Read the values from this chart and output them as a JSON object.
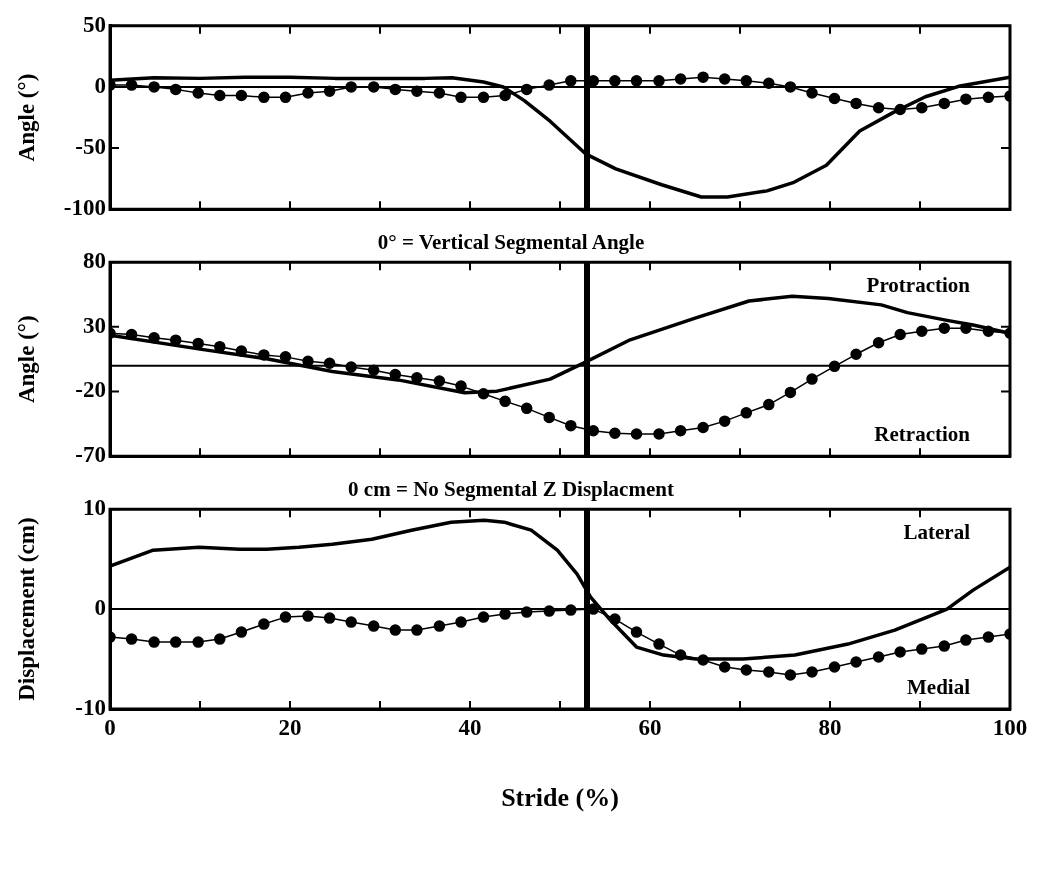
{
  "chart_data": [
    {
      "type": "line",
      "ylabel": "Angle (°)",
      "xlim": [
        0,
        100
      ],
      "xticks": [
        0,
        {
          "value": 10,
          "label": null
        },
        20,
        {
          "value": 30,
          "label": null
        },
        40,
        {
          "value": 50,
          "label": null
        },
        60,
        {
          "value": 70,
          "label": null
        },
        80,
        {
          "value": 90,
          "label": null
        },
        100
      ],
      "ylim": [
        -100,
        50
      ],
      "yticks": [
        -100,
        -50,
        0,
        50
      ],
      "tick_labels": "y",
      "grid": false,
      "legend": false,
      "ref_lines": [
        {
          "axis": "x",
          "value": 53,
          "color": "#000000"
        },
        {
          "axis": "y",
          "value": 0,
          "color": "#000000"
        }
      ],
      "series": [
        {
          "color": "#000000",
          "marker": "none",
          "x": [
            0,
            4.9,
            10,
            15,
            20,
            25,
            30,
            35,
            38,
            41.5,
            43.7,
            46,
            48.9,
            52.9,
            56.2,
            61.3,
            65.7,
            68.6,
            73,
            76,
            79.6,
            83.3,
            87,
            90.6,
            94.3,
            100
          ],
          "values": [
            5.5,
            7.5,
            7,
            8,
            8,
            7,
            7,
            7,
            7.5,
            4,
            0,
            -11,
            -28,
            -55,
            -67,
            -80,
            -90,
            -90,
            -85,
            -78,
            -64,
            -36,
            -21,
            -8,
            0.5,
            8
          ]
        },
        {
          "color": "#000000",
          "marker": "circle",
          "x": [
            0,
            2.4,
            4.9,
            7.3,
            9.8,
            12.2,
            14.6,
            17.1,
            19.5,
            22,
            24.4,
            26.8,
            29.3,
            31.7,
            34.1,
            36.6,
            39,
            41.5,
            43.9,
            46.3,
            48.8,
            51.2,
            53.7,
            56.1,
            58.5,
            61,
            63.4,
            65.9,
            68.3,
            70.7,
            73.2,
            75.6,
            78,
            80.5,
            82.9,
            85.4,
            87.8,
            90.2,
            92.7,
            95.1,
            97.6,
            100
          ],
          "values": [
            1.5,
            1.5,
            0,
            -2,
            -5,
            -7,
            -7,
            -8.5,
            -8.5,
            -5,
            -3.5,
            0,
            0,
            -2,
            -3.5,
            -5,
            -8.5,
            -8.5,
            -7,
            -2,
            1.5,
            5,
            5,
            5,
            5,
            5,
            6.5,
            8,
            6.5,
            5,
            3,
            0,
            -5,
            -9.5,
            -13.5,
            -17,
            -18.5,
            -17,
            -13.5,
            -10,
            -8.5,
            -7.5
          ]
        }
      ]
    },
    {
      "type": "line",
      "title": "0° = Vertical Segmental Angle",
      "ylabel": "Angle (°)",
      "xlim": [
        0,
        100
      ],
      "xticks": [
        0,
        {
          "value": 10,
          "label": null
        },
        20,
        {
          "value": 30,
          "label": null
        },
        40,
        {
          "value": 50,
          "label": null
        },
        60,
        {
          "value": 70,
          "label": null
        },
        80,
        {
          "value": 90,
          "label": null
        },
        100
      ],
      "ylim": [
        -70,
        80
      ],
      "yticks": [
        -70,
        -20,
        30,
        80
      ],
      "tick_labels": "y",
      "grid": false,
      "legend": false,
      "annotations": [
        "Protraction",
        "Retraction"
      ],
      "ref_lines": [
        {
          "axis": "x",
          "value": 53,
          "color": "#000000"
        },
        {
          "axis": "y",
          "value": 0,
          "color": "#000000"
        }
      ],
      "series": [
        {
          "color": "#000000",
          "marker": "none",
          "x": [
            0,
            10,
            17.4,
            24.7,
            32,
            39.4,
            43,
            48.9,
            52.6,
            57.8,
            65.1,
            71,
            75.8,
            79.8,
            85.7,
            88.6,
            93,
            95.9,
            100
          ],
          "values": [
            23.6,
            12.8,
            5.4,
            -4.5,
            -11,
            -21,
            -19.7,
            -10.4,
            2,
            20,
            37,
            50,
            53.6,
            52,
            47,
            41,
            35,
            31.5,
            25
          ]
        },
        {
          "color": "#000000",
          "marker": "circle",
          "x": [
            0,
            2.4,
            4.9,
            7.3,
            9.8,
            12.2,
            14.6,
            17.1,
            19.5,
            22,
            24.4,
            26.8,
            29.3,
            31.7,
            34.1,
            36.6,
            39,
            41.5,
            43.9,
            46.3,
            48.8,
            51.2,
            53.7,
            56.1,
            58.5,
            61,
            63.4,
            65.9,
            68.3,
            70.7,
            73.2,
            75.6,
            78,
            80.5,
            82.9,
            85.4,
            87.8,
            90.2,
            92.7,
            95.1,
            97.6,
            100
          ],
          "values": [
            25.1,
            24.1,
            21.6,
            19.7,
            17.2,
            14.7,
            11.3,
            8.3,
            6.8,
            3.4,
            1.9,
            -1,
            -3.5,
            -6.9,
            -9.4,
            -11.9,
            -15.8,
            -21.7,
            -27.6,
            -33,
            -40,
            -46.4,
            -50.3,
            -52.3,
            -52.8,
            -52.8,
            -50.3,
            -47.8,
            -42.9,
            -36.5,
            -30.1,
            -20.7,
            -10.4,
            -0.5,
            8.8,
            17.7,
            24.1,
            26.6,
            29,
            29,
            26.6,
            25.1
          ]
        }
      ]
    },
    {
      "type": "line",
      "title": "0 cm = No Segmental Z Displacment",
      "xlabel": "Stride (%)",
      "ylabel": "Displacement (cm)",
      "xlim": [
        0,
        100
      ],
      "xticks": [
        0,
        {
          "value": 10,
          "label": null
        },
        20,
        {
          "value": 30,
          "label": null
        },
        40,
        {
          "value": 50,
          "label": null
        },
        60,
        {
          "value": 70,
          "label": null
        },
        80,
        {
          "value": 90,
          "label": null
        },
        100
      ],
      "ylim": [
        -10,
        10
      ],
      "yticks": [
        -10,
        0,
        10
      ],
      "grid": false,
      "legend": false,
      "annotations": [
        "Lateral",
        "Medial"
      ],
      "ref_lines": [
        {
          "axis": "x",
          "value": 53,
          "color": "#000000"
        },
        {
          "axis": "y",
          "value": 0,
          "color": "#000000"
        }
      ],
      "series": [
        {
          "color": "#000000",
          "marker": "none",
          "x": [
            0,
            4.8,
            9.9,
            14.4,
            17.4,
            21,
            24.7,
            29.1,
            33.5,
            37.9,
            41.6,
            43.8,
            46.8,
            49.7,
            51.9,
            53.4,
            55.6,
            58.5,
            61.5,
            65.1,
            70.3,
            76.1,
            82,
            87.2,
            90.8,
            93,
            95.9,
            100
          ],
          "values": [
            4.3,
            5.9,
            6.2,
            6,
            6,
            6.2,
            6.5,
            7,
            7.9,
            8.7,
            8.9,
            8.7,
            7.9,
            5.9,
            3.5,
            1.2,
            -1.1,
            -3.8,
            -4.6,
            -5,
            -5,
            -4.6,
            -3.5,
            -2.1,
            -0.8,
            0,
            1.9,
            4.2
          ]
        },
        {
          "color": "#000000",
          "marker": "circle",
          "x": [
            0,
            2.4,
            4.9,
            7.3,
            9.8,
            12.2,
            14.6,
            17.1,
            19.5,
            22,
            24.4,
            26.8,
            29.3,
            31.7,
            34.1,
            36.6,
            39,
            41.5,
            43.9,
            46.3,
            48.8,
            51.2,
            53.7,
            56.1,
            58.5,
            61,
            63.4,
            65.9,
            68.3,
            70.7,
            73.2,
            75.6,
            78,
            80.5,
            82.9,
            85.4,
            87.8,
            90.2,
            92.7,
            95.1,
            97.6,
            100
          ],
          "values": [
            -2.8,
            -3,
            -3.3,
            -3.3,
            -3.3,
            -3,
            -2.3,
            -1.5,
            -0.8,
            -0.7,
            -0.9,
            -1.3,
            -1.7,
            -2.1,
            -2.1,
            -1.7,
            -1.3,
            -0.8,
            -0.5,
            -0.3,
            -0.2,
            -0.1,
            0,
            -1,
            -2.3,
            -3.5,
            -4.6,
            -5.1,
            -5.8,
            -6.1,
            -6.3,
            -6.6,
            -6.3,
            -5.8,
            -5.3,
            -4.8,
            -4.3,
            -4,
            -3.7,
            -3.1,
            -2.8,
            -2.5
          ]
        }
      ]
    }
  ]
}
